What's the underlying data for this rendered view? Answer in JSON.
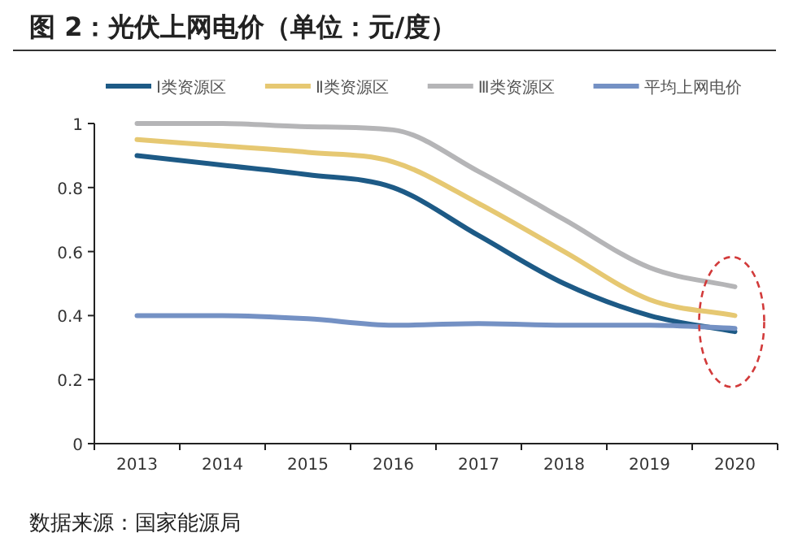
{
  "chart_data": {
    "type": "line",
    "title": "图 2：光伏上网电价（单位：元/度）",
    "categories": [
      "2013",
      "2014",
      "2015",
      "2016",
      "2017",
      "2018",
      "2019",
      "2020"
    ],
    "series": [
      {
        "name": "Ⅰ类资源区",
        "color": "#1d5a86",
        "values": [
          0.9,
          0.87,
          0.84,
          0.8,
          0.65,
          0.5,
          0.4,
          0.35
        ]
      },
      {
        "name": "Ⅱ类资源区",
        "color": "#e6c872",
        "values": [
          0.95,
          0.93,
          0.91,
          0.88,
          0.75,
          0.6,
          0.45,
          0.4
        ]
      },
      {
        "name": "Ⅲ类资源区",
        "color": "#b5b5b7",
        "values": [
          1.0,
          1.0,
          0.99,
          0.98,
          0.85,
          0.7,
          0.55,
          0.49
        ]
      },
      {
        "name": "平均上网电价",
        "color": "#7491c4",
        "values": [
          0.4,
          0.4,
          0.39,
          0.37,
          0.375,
          0.37,
          0.37,
          0.36
        ]
      }
    ],
    "ylim": [
      0,
      1
    ],
    "yticks": [
      0,
      0.2,
      0.4,
      0.6,
      0.8,
      1
    ],
    "legend": "top",
    "marker": "none",
    "line_style": "solid",
    "annotations": [
      "数据来源：国家能源局"
    ]
  }
}
